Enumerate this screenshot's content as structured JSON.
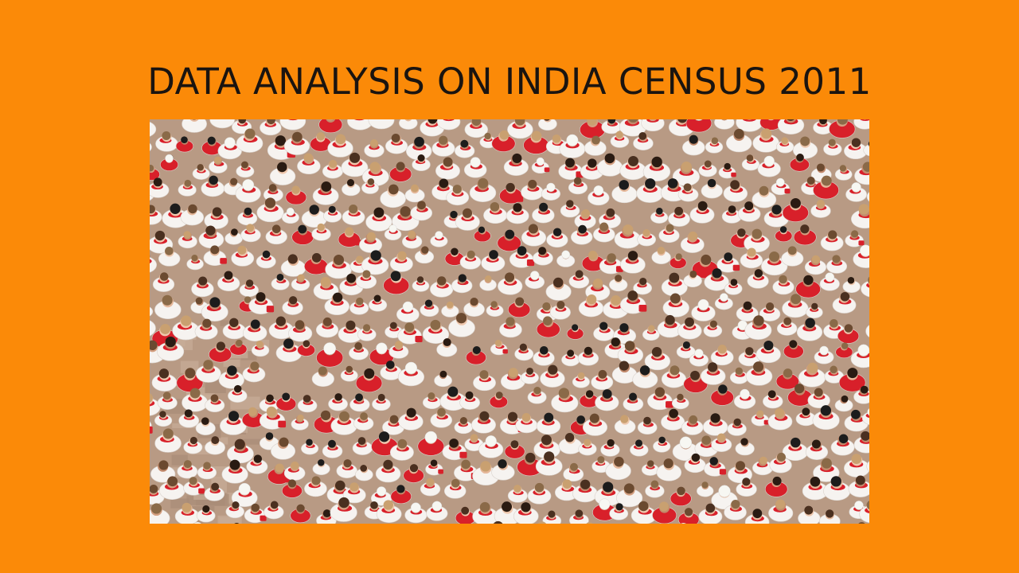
{
  "slide": {
    "background_color": "#FB8A08",
    "title": "DATA ANALYSIS ON INDIA CENSUS 2011"
  },
  "photo": {
    "alt": "crowd-photo",
    "palette": {
      "ground": "#B89A84",
      "shirt": "#F6F3F0",
      "scarf": "#D8202A",
      "hair": [
        "#2A1B12",
        "#4A3020",
        "#6B4A30",
        "#8A6A48",
        "#C9A070",
        "#1C1C1C"
      ],
      "skin": [
        "#E6B89A",
        "#D49F80",
        "#C28A6C",
        "#EFC8AE"
      ]
    }
  }
}
